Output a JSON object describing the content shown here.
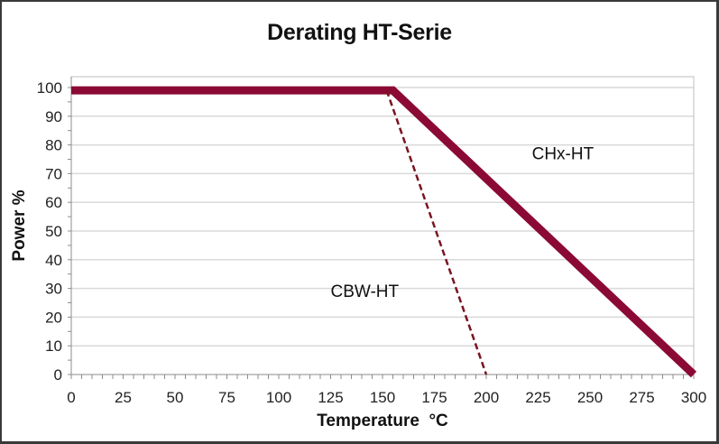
{
  "chart_data": {
    "type": "line",
    "title": "Derating HT-Serie",
    "xlabel": "Temperature  °C",
    "ylabel": "Power  %",
    "xlim": [
      0,
      300
    ],
    "ylim": [
      0,
      100
    ],
    "x_ticks": [
      0,
      25,
      50,
      75,
      100,
      125,
      150,
      175,
      200,
      225,
      250,
      275,
      300
    ],
    "y_ticks": [
      0,
      10,
      20,
      30,
      40,
      50,
      60,
      70,
      80,
      90,
      100
    ],
    "grid": "horizontal",
    "legend": "none (inline annotations)",
    "series": [
      {
        "name": "CHx-HT",
        "style": "solid-thick",
        "color": "#8b0a35",
        "points": [
          [
            0,
            99
          ],
          [
            155,
            99
          ],
          [
            300,
            0
          ]
        ]
      },
      {
        "name": "CBW-HT",
        "style": "dashed",
        "color": "#7a1420",
        "points": [
          [
            152,
            99
          ],
          [
            200,
            0
          ]
        ]
      }
    ],
    "annotations": [
      {
        "text": "CHx-HT",
        "x": 222,
        "y": 75
      },
      {
        "text": "CBW-HT",
        "x": 125,
        "y": 27
      }
    ]
  },
  "colors": {
    "line": "#8b0a35",
    "dashed": "#7a1420",
    "grid": "#d9d9d9",
    "axis": "#8c8c8c"
  }
}
